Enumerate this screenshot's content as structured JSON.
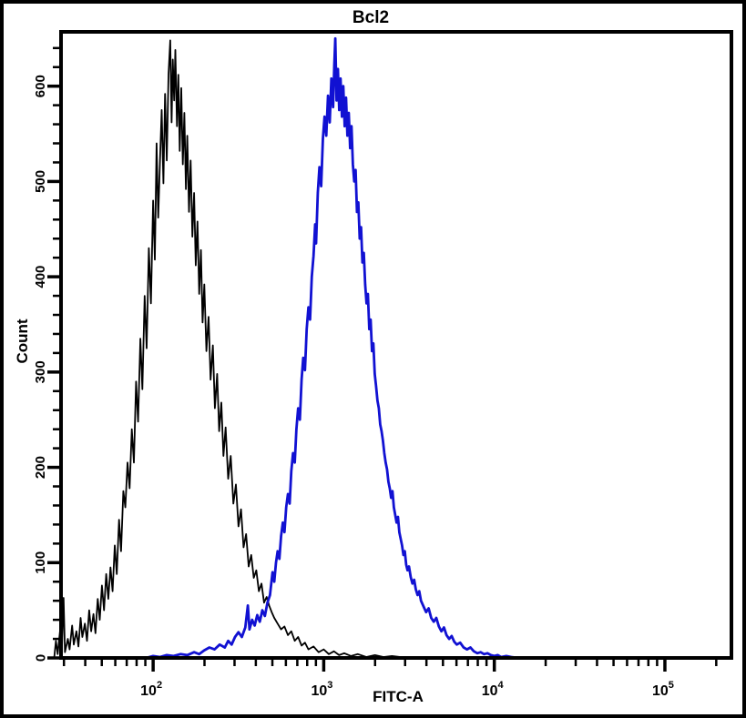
{
  "window": {
    "title": "Bcl2"
  },
  "colors": {
    "background": "#ffffff",
    "frame": "#000000",
    "axis": "#000000",
    "black_curve": "#000000",
    "blue_curve": "#1111d2"
  },
  "chart_data": {
    "type": "line",
    "title": "Bcl2",
    "xlabel": "FITC-A",
    "ylabel": "Count",
    "x_scale": "log10",
    "x_log_range": [
      1.46,
      5.39
    ],
    "x_major_tick_exponents": [
      2,
      3,
      4,
      5
    ],
    "ylim": [
      0,
      657
    ],
    "y_major_ticks": [
      0,
      100,
      200,
      300,
      400,
      500,
      600
    ],
    "y_minor_tick_step": 20,
    "grid": false,
    "legend": "none",
    "series": [
      {
        "name": "black",
        "color": "#000000",
        "peak_x_log10": 2.1,
        "peak_count": 648,
        "points": [
          [
            1.42,
            0
          ],
          [
            1.43,
            18
          ],
          [
            1.44,
            4
          ],
          [
            1.455,
            30
          ],
          [
            1.465,
            8
          ],
          [
            1.475,
            63
          ],
          [
            1.483,
            6
          ],
          [
            1.5,
            20
          ],
          [
            1.51,
            9
          ],
          [
            1.525,
            34
          ],
          [
            1.535,
            14
          ],
          [
            1.55,
            28
          ],
          [
            1.562,
            12
          ],
          [
            1.575,
            42
          ],
          [
            1.585,
            22
          ],
          [
            1.6,
            36
          ],
          [
            1.612,
            18
          ],
          [
            1.625,
            50
          ],
          [
            1.637,
            28
          ],
          [
            1.65,
            46
          ],
          [
            1.662,
            26
          ],
          [
            1.675,
            62
          ],
          [
            1.687,
            40
          ],
          [
            1.7,
            76
          ],
          [
            1.712,
            50
          ],
          [
            1.725,
            88
          ],
          [
            1.737,
            62
          ],
          [
            1.75,
            95
          ],
          [
            1.762,
            70
          ],
          [
            1.775,
            118
          ],
          [
            1.787,
            88
          ],
          [
            1.8,
            145
          ],
          [
            1.812,
            112
          ],
          [
            1.825,
            175
          ],
          [
            1.837,
            158
          ],
          [
            1.85,
            205
          ],
          [
            1.862,
            178
          ],
          [
            1.875,
            240
          ],
          [
            1.887,
            205
          ],
          [
            1.9,
            290
          ],
          [
            1.912,
            248
          ],
          [
            1.925,
            335
          ],
          [
            1.937,
            282
          ],
          [
            1.95,
            380
          ],
          [
            1.962,
            325
          ],
          [
            1.975,
            430
          ],
          [
            1.987,
            372
          ],
          [
            2.0,
            480
          ],
          [
            2.01,
            418
          ],
          [
            2.02,
            540
          ],
          [
            2.03,
            462
          ],
          [
            2.04,
            520
          ],
          [
            2.05,
            575
          ],
          [
            2.06,
            498
          ],
          [
            2.07,
            592
          ],
          [
            2.08,
            522
          ],
          [
            2.09,
            612
          ],
          [
            2.1,
            648
          ],
          [
            2.108,
            562
          ],
          [
            2.115,
            628
          ],
          [
            2.123,
            585
          ],
          [
            2.13,
            638
          ],
          [
            2.14,
            558
          ],
          [
            2.148,
            612
          ],
          [
            2.156,
            532
          ],
          [
            2.165,
            598
          ],
          [
            2.174,
            518
          ],
          [
            2.183,
            572
          ],
          [
            2.192,
            492
          ],
          [
            2.2,
            548
          ],
          [
            2.21,
            468
          ],
          [
            2.22,
            522
          ],
          [
            2.23,
            442
          ],
          [
            2.24,
            488
          ],
          [
            2.25,
            412
          ],
          [
            2.26,
            458
          ],
          [
            2.27,
            382
          ],
          [
            2.28,
            428
          ],
          [
            2.29,
            352
          ],
          [
            2.3,
            392
          ],
          [
            2.312,
            322
          ],
          [
            2.325,
            358
          ],
          [
            2.337,
            292
          ],
          [
            2.35,
            328
          ],
          [
            2.362,
            262
          ],
          [
            2.375,
            298
          ],
          [
            2.387,
            238
          ],
          [
            2.4,
            268
          ],
          [
            2.412,
            212
          ],
          [
            2.425,
            242
          ],
          [
            2.44,
            188
          ],
          [
            2.455,
            212
          ],
          [
            2.47,
            162
          ],
          [
            2.485,
            182
          ],
          [
            2.5,
            138
          ],
          [
            2.515,
            156
          ],
          [
            2.53,
            116
          ],
          [
            2.545,
            130
          ],
          [
            2.56,
            96
          ],
          [
            2.575,
            108
          ],
          [
            2.59,
            84
          ],
          [
            2.605,
            92
          ],
          [
            2.62,
            70
          ],
          [
            2.635,
            78
          ],
          [
            2.65,
            58
          ],
          [
            2.665,
            64
          ],
          [
            2.68,
            55
          ],
          [
            2.695,
            48
          ],
          [
            2.71,
            42
          ],
          [
            2.73,
            36
          ],
          [
            2.75,
            30
          ],
          [
            2.77,
            33
          ],
          [
            2.79,
            24
          ],
          [
            2.81,
            28
          ],
          [
            2.83,
            18
          ],
          [
            2.85,
            22
          ],
          [
            2.87,
            13
          ],
          [
            2.89,
            16
          ],
          [
            2.91,
            9
          ],
          [
            2.94,
            12
          ],
          [
            2.97,
            6
          ],
          [
            3.0,
            9
          ],
          [
            3.03,
            4
          ],
          [
            3.06,
            7
          ],
          [
            3.09,
            3
          ],
          [
            3.12,
            5
          ],
          [
            3.16,
            2
          ],
          [
            3.2,
            4
          ],
          [
            3.25,
            1
          ],
          [
            3.3,
            3
          ],
          [
            3.35,
            1
          ],
          [
            3.4,
            2
          ],
          [
            3.45,
            1
          ],
          [
            3.5,
            0
          ]
        ]
      },
      {
        "name": "blue",
        "color": "#1111d2",
        "peak_x_log10": 3.068,
        "peak_count": 650,
        "points": [
          [
            1.96,
            0
          ],
          [
            2.0,
            2
          ],
          [
            2.04,
            1
          ],
          [
            2.08,
            3
          ],
          [
            2.12,
            2
          ],
          [
            2.16,
            4
          ],
          [
            2.2,
            3
          ],
          [
            2.24,
            6
          ],
          [
            2.27,
            4
          ],
          [
            2.3,
            8
          ],
          [
            2.33,
            11
          ],
          [
            2.36,
            9
          ],
          [
            2.39,
            14
          ],
          [
            2.42,
            11
          ],
          [
            2.44,
            18
          ],
          [
            2.46,
            14
          ],
          [
            2.48,
            22
          ],
          [
            2.5,
            27
          ],
          [
            2.52,
            22
          ],
          [
            2.54,
            32
          ],
          [
            2.555,
            55
          ],
          [
            2.565,
            30
          ],
          [
            2.58,
            40
          ],
          [
            2.595,
            34
          ],
          [
            2.61,
            45
          ],
          [
            2.625,
            38
          ],
          [
            2.64,
            50
          ],
          [
            2.655,
            44
          ],
          [
            2.67,
            58
          ],
          [
            2.685,
            66
          ],
          [
            2.7,
            90
          ],
          [
            2.71,
            80
          ],
          [
            2.72,
            100
          ],
          [
            2.73,
            112
          ],
          [
            2.74,
            104
          ],
          [
            2.75,
            128
          ],
          [
            2.76,
            142
          ],
          [
            2.77,
            132
          ],
          [
            2.78,
            158
          ],
          [
            2.79,
            172
          ],
          [
            2.8,
            162
          ],
          [
            2.81,
            196
          ],
          [
            2.82,
            215
          ],
          [
            2.83,
            205
          ],
          [
            2.84,
            240
          ],
          [
            2.85,
            262
          ],
          [
            2.86,
            250
          ],
          [
            2.87,
            292
          ],
          [
            2.88,
            315
          ],
          [
            2.89,
            302
          ],
          [
            2.9,
            345
          ],
          [
            2.91,
            368
          ],
          [
            2.92,
            355
          ],
          [
            2.93,
            400
          ],
          [
            2.94,
            422
          ],
          [
            2.95,
            455
          ],
          [
            2.955,
            435
          ],
          [
            2.965,
            488
          ],
          [
            2.975,
            515
          ],
          [
            2.985,
            495
          ],
          [
            2.995,
            545
          ],
          [
            3.005,
            568
          ],
          [
            3.015,
            548
          ],
          [
            3.025,
            590
          ],
          [
            3.035,
            562
          ],
          [
            3.045,
            608
          ],
          [
            3.055,
            578
          ],
          [
            3.062,
            622
          ],
          [
            3.068,
            650
          ],
          [
            3.075,
            585
          ],
          [
            3.083,
            618
          ],
          [
            3.091,
            575
          ],
          [
            3.099,
            608
          ],
          [
            3.107,
            568
          ],
          [
            3.115,
            600
          ],
          [
            3.123,
            558
          ],
          [
            3.131,
            588
          ],
          [
            3.139,
            548
          ],
          [
            3.147,
            572
          ],
          [
            3.155,
            535
          ],
          [
            3.163,
            558
          ],
          [
            3.171,
            518
          ],
          [
            3.179,
            500
          ],
          [
            3.187,
            512
          ],
          [
            3.195,
            468
          ],
          [
            3.203,
            478
          ],
          [
            3.211,
            440
          ],
          [
            3.219,
            452
          ],
          [
            3.227,
            415
          ],
          [
            3.235,
            425
          ],
          [
            3.243,
            392
          ],
          [
            3.251,
            372
          ],
          [
            3.259,
            382
          ],
          [
            3.267,
            345
          ],
          [
            3.275,
            355
          ],
          [
            3.283,
            322
          ],
          [
            3.291,
            330
          ],
          [
            3.299,
            298
          ],
          [
            3.307,
            285
          ],
          [
            3.315,
            270
          ],
          [
            3.323,
            262
          ],
          [
            3.331,
            245
          ],
          [
            3.339,
            238
          ],
          [
            3.347,
            228
          ],
          [
            3.355,
            215
          ],
          [
            3.363,
            205
          ],
          [
            3.371,
            198
          ],
          [
            3.379,
            185
          ],
          [
            3.387,
            178
          ],
          [
            3.395,
            168
          ],
          [
            3.403,
            175
          ],
          [
            3.411,
            158
          ],
          [
            3.419,
            150
          ],
          [
            3.427,
            142
          ],
          [
            3.435,
            148
          ],
          [
            3.443,
            132
          ],
          [
            3.451,
            125
          ],
          [
            3.459,
            118
          ],
          [
            3.467,
            108
          ],
          [
            3.475,
            112
          ],
          [
            3.483,
            98
          ],
          [
            3.491,
            92
          ],
          [
            3.5,
            96
          ],
          [
            3.51,
            85
          ],
          [
            3.52,
            78
          ],
          [
            3.53,
            82
          ],
          [
            3.54,
            72
          ],
          [
            3.55,
            66
          ],
          [
            3.56,
            70
          ],
          [
            3.57,
            60
          ],
          [
            3.585,
            54
          ],
          [
            3.6,
            48
          ],
          [
            3.615,
            52
          ],
          [
            3.63,
            42
          ],
          [
            3.645,
            38
          ],
          [
            3.66,
            42
          ],
          [
            3.675,
            33
          ],
          [
            3.69,
            28
          ],
          [
            3.705,
            32
          ],
          [
            3.72,
            24
          ],
          [
            3.735,
            20
          ],
          [
            3.75,
            23
          ],
          [
            3.765,
            17
          ],
          [
            3.78,
            14
          ],
          [
            3.8,
            16
          ],
          [
            3.82,
            11
          ],
          [
            3.84,
            9
          ],
          [
            3.86,
            11
          ],
          [
            3.88,
            7
          ],
          [
            3.9,
            5
          ],
          [
            3.92,
            6
          ],
          [
            3.94,
            4
          ],
          [
            3.96,
            5
          ],
          [
            3.98,
            3
          ],
          [
            4.0,
            2
          ],
          [
            4.02,
            3
          ],
          [
            4.04,
            1
          ],
          [
            4.07,
            2
          ],
          [
            4.1,
            1
          ],
          [
            4.14,
            0
          ]
        ]
      }
    ]
  }
}
